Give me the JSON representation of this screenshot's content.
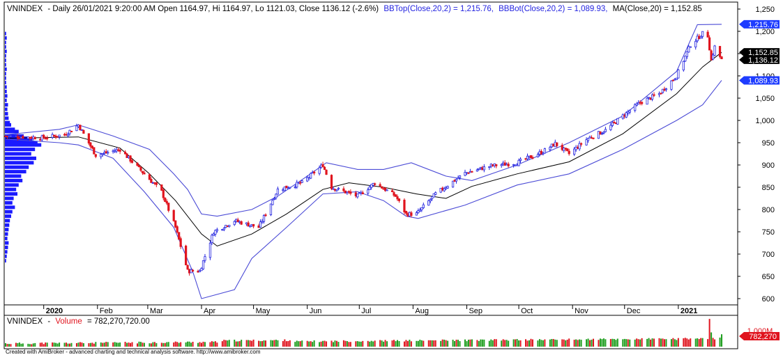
{
  "header": {
    "ticker": "VNINDEX",
    "info": "- Daily 26/01/2021 9:20:00 AM Open 1164.97, Hi 1164.97, Lo 1121.03, Close 1136.12 (-2.6%)",
    "bbtop": "BBTop(Close,20,2) = 1,215.76,",
    "bbbot": "BBBot(Close,20,2) = 1,089.93,",
    "ma": "MA(Close,20) = 1,152.85"
  },
  "volume_header": {
    "ticker": "VNINDEX",
    "sep": "-",
    "label": "Volume",
    "value": "= 782,270,720.00"
  },
  "footer": "Created with AmiBroker - advanced charting and technical analysis software. http://www.amibroker.com",
  "colors": {
    "up": "#2323e0",
    "down": "#e0141e",
    "bands": "#4b4bd6",
    "ma": "#000000",
    "volume_up": "#1e9e1e",
    "volume_down": "#e0141e",
    "profile": "#1a1aff",
    "tag_blue": "#1e3cff",
    "tag_black": "#000000",
    "tag_red": "#e0141e"
  },
  "chart_data": {
    "type": "candlestick",
    "months": [
      "2020",
      "Feb",
      "Mar",
      "Apr",
      "May",
      "Jun",
      "Jul",
      "Aug",
      "Sep",
      "Oct",
      "Nov",
      "Dec",
      "2021"
    ],
    "y_ticks": [
      "600",
      "650",
      "700",
      "750",
      "800",
      "850",
      "900",
      "950",
      "1,000",
      "1,050",
      "1,100",
      "1,150",
      "1,200",
      "1,250"
    ],
    "ylim": [
      580,
      1265
    ],
    "last_values": {
      "bbtop": "1,215.76",
      "ma": "1,152.85",
      "close": "1,136.12",
      "bbbot": "1,089.93"
    },
    "volume_tags": [
      "1,000M",
      "782,270"
    ],
    "close_path": [
      [
        "2019-12-10",
        965
      ],
      [
        "2019-12-31",
        961
      ],
      [
        "2020-01-13",
        968
      ],
      [
        "2020-01-21",
        990
      ],
      [
        "2020-01-31",
        922
      ],
      [
        "2020-02-14",
        935
      ],
      [
        "2020-02-28",
        880
      ],
      [
        "2020-03-09",
        840
      ],
      [
        "2020-03-17",
        760
      ],
      [
        "2020-03-24",
        662
      ],
      [
        "2020-03-31",
        662
      ],
      [
        "2020-04-08",
        750
      ],
      [
        "2020-04-20",
        775
      ],
      [
        "2020-05-04",
        760
      ],
      [
        "2020-05-15",
        845
      ],
      [
        "2020-05-29",
        860
      ],
      [
        "2020-06-10",
        900
      ],
      [
        "2020-06-15",
        850
      ],
      [
        "2020-06-30",
        830
      ],
      [
        "2020-07-10",
        860
      ],
      [
        "2020-07-22",
        830
      ],
      [
        "2020-07-28",
        790
      ],
      [
        "2020-08-03",
        790
      ],
      [
        "2020-08-14",
        835
      ],
      [
        "2020-08-31",
        882
      ],
      [
        "2020-09-15",
        898
      ],
      [
        "2020-09-30",
        905
      ],
      [
        "2020-10-15",
        930
      ],
      [
        "2020-10-22",
        948
      ],
      [
        "2020-10-30",
        925
      ],
      [
        "2020-11-10",
        960
      ],
      [
        "2020-11-20",
        978
      ],
      [
        "2020-11-30",
        1010
      ],
      [
        "2020-12-10",
        1040
      ],
      [
        "2020-12-21",
        1060
      ],
      [
        "2020-12-31",
        1100
      ],
      [
        "2021-01-08",
        1170
      ],
      [
        "2021-01-15",
        1195
      ],
      [
        "2021-01-18",
        1190
      ],
      [
        "2021-01-20",
        1135
      ],
      [
        "2021-01-22",
        1165
      ],
      [
        "2021-01-26",
        1136
      ]
    ],
    "ma_path": [
      [
        "2019-12-10",
        960
      ],
      [
        "2020-01-21",
        963
      ],
      [
        "2020-02-14",
        938
      ],
      [
        "2020-03-02",
        880
      ],
      [
        "2020-03-17",
        820
      ],
      [
        "2020-04-01",
        745
      ],
      [
        "2020-04-10",
        718
      ],
      [
        "2020-04-30",
        745
      ],
      [
        "2020-05-20",
        790
      ],
      [
        "2020-06-10",
        845
      ],
      [
        "2020-06-25",
        860
      ],
      [
        "2020-07-15",
        850
      ],
      [
        "2020-08-03",
        835
      ],
      [
        "2020-08-20",
        825
      ],
      [
        "2020-09-04",
        852
      ],
      [
        "2020-09-30",
        880
      ],
      [
        "2020-10-30",
        907
      ],
      [
        "2020-11-30",
        970
      ],
      [
        "2020-12-31",
        1060
      ],
      [
        "2021-01-15",
        1120
      ],
      [
        "2021-01-26",
        1152.85
      ]
    ],
    "bbtop_path": [
      [
        "2019-12-10",
        968
      ],
      [
        "2020-01-10",
        980
      ],
      [
        "2020-01-21",
        990
      ],
      [
        "2020-02-10",
        965
      ],
      [
        "2020-03-02",
        935
      ],
      [
        "2020-03-16",
        880
      ],
      [
        "2020-03-24",
        845
      ],
      [
        "2020-04-01",
        790
      ],
      [
        "2020-04-10",
        785
      ],
      [
        "2020-04-30",
        800
      ],
      [
        "2020-05-15",
        830
      ],
      [
        "2020-06-01",
        875
      ],
      [
        "2020-06-12",
        905
      ],
      [
        "2020-06-30",
        890
      ],
      [
        "2020-07-15",
        890
      ],
      [
        "2020-07-31",
        905
      ],
      [
        "2020-08-20",
        875
      ],
      [
        "2020-09-04",
        865
      ],
      [
        "2020-09-30",
        900
      ],
      [
        "2020-10-30",
        950
      ],
      [
        "2020-11-30",
        1010
      ],
      [
        "2020-12-31",
        1110
      ],
      [
        "2021-01-12",
        1215
      ],
      [
        "2021-01-26",
        1215.76
      ]
    ],
    "bbbot_path": [
      [
        "2019-12-10",
        958
      ],
      [
        "2020-01-10",
        950
      ],
      [
        "2020-01-21",
        945
      ],
      [
        "2020-02-10",
        915
      ],
      [
        "2020-02-28",
        840
      ],
      [
        "2020-03-16",
        760
      ],
      [
        "2020-03-27",
        660
      ],
      [
        "2020-04-01",
        600
      ],
      [
        "2020-04-20",
        620
      ],
      [
        "2020-04-30",
        690
      ],
      [
        "2020-05-20",
        760
      ],
      [
        "2020-06-10",
        835
      ],
      [
        "2020-06-30",
        840
      ],
      [
        "2020-07-15",
        820
      ],
      [
        "2020-07-28",
        785
      ],
      [
        "2020-08-04",
        780
      ],
      [
        "2020-08-31",
        810
      ],
      [
        "2020-09-30",
        855
      ],
      [
        "2020-10-30",
        880
      ],
      [
        "2020-11-30",
        935
      ],
      [
        "2020-12-31",
        1000
      ],
      [
        "2021-01-15",
        1035
      ],
      [
        "2021-01-26",
        1089.93
      ]
    ],
    "profile": [
      [
        995,
        8
      ],
      [
        990,
        10
      ],
      [
        980,
        16
      ],
      [
        975,
        22
      ],
      [
        965,
        30
      ],
      [
        960,
        36
      ],
      [
        955,
        44
      ],
      [
        950,
        52
      ],
      [
        945,
        58
      ],
      [
        935,
        48
      ],
      [
        925,
        42
      ],
      [
        915,
        50
      ],
      [
        905,
        46
      ],
      [
        895,
        38
      ],
      [
        885,
        34
      ],
      [
        875,
        26
      ],
      [
        865,
        28
      ],
      [
        855,
        22
      ],
      [
        845,
        18
      ],
      [
        835,
        20
      ],
      [
        825,
        14
      ],
      [
        815,
        12
      ],
      [
        805,
        16
      ],
      [
        795,
        12
      ],
      [
        785,
        10
      ],
      [
        775,
        8
      ],
      [
        765,
        7
      ],
      [
        755,
        6
      ],
      [
        745,
        5
      ],
      [
        735,
        4
      ],
      [
        725,
        6
      ],
      [
        715,
        5
      ],
      [
        705,
        4
      ],
      [
        695,
        3
      ],
      [
        685,
        2
      ],
      [
        1005,
        6
      ],
      [
        1015,
        5
      ],
      [
        1025,
        4
      ],
      [
        1035,
        5
      ],
      [
        1045,
        3
      ],
      [
        1055,
        4
      ],
      [
        1065,
        3
      ],
      [
        1075,
        3
      ],
      [
        1085,
        2
      ],
      [
        1095,
        2
      ],
      [
        1105,
        2
      ],
      [
        1115,
        3
      ],
      [
        1125,
        2
      ],
      [
        1135,
        2
      ],
      [
        1145,
        2
      ],
      [
        1155,
        3
      ],
      [
        1165,
        2
      ],
      [
        1175,
        2
      ],
      [
        1185,
        3
      ],
      [
        1195,
        2
      ]
    ],
    "volume_spikes": [
      [
        "2021-01-19",
        1750
      ],
      [
        "2021-01-20",
        900
      ],
      [
        "2020-12-31",
        420
      ],
      [
        "2021-01-26",
        782
      ]
    ]
  }
}
